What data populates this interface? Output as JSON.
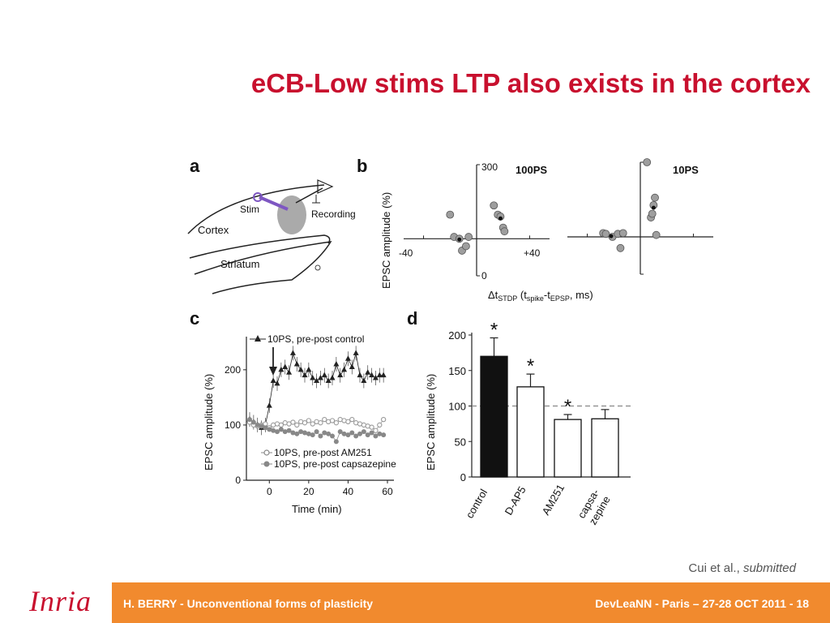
{
  "title": "eCB-Low stims LTP also exists in the cortex",
  "citation": {
    "authors": "Cui et al.,",
    "status": "submitted"
  },
  "footer": {
    "left": "H. BERRY - Unconventional forms of plasticity",
    "right": "DevLeaNN - Paris – 27-28 OCT 2011 - 18",
    "logo": "Inria"
  },
  "figure": {
    "panel_a": {
      "letter": "a",
      "labels": {
        "stim": "Stim",
        "recording": "Recording",
        "cortex": "Cortex",
        "striatum": "Striatum"
      }
    },
    "panel_b": {
      "letter": "b",
      "ylabel": "EPSC amplitude (%)",
      "xlabel_main": "Δt",
      "xlabel_sub1": "STDP",
      "xlabel_mid": " (t",
      "xlabel_sub2": "spike",
      "xlabel_mid2": "-t",
      "xlabel_sub3": "EPSP",
      "xlabel_end": ", ms)",
      "ytick_top": "300",
      "ytick_bottom": "0",
      "xtick_left": "-40",
      "xtick_right": "+40",
      "plot1_label": "100PS",
      "plot2_label": "10PS"
    },
    "panel_c": {
      "letter": "c",
      "ylabel": "EPSC amplitude (%)",
      "xlabel": "Time (min)",
      "yticks": [
        "0",
        "100",
        "200"
      ],
      "xticks": [
        "0",
        "20",
        "40",
        "60"
      ],
      "legend_top": "10PS, pre-post control",
      "legend_mid": "10PS, pre-post AM251",
      "legend_bottom": "10PS, pre-post capsazepine"
    },
    "panel_d": {
      "letter": "d",
      "ylabel": "EPSC amplitude (%)",
      "yticks": [
        "0",
        "50",
        "100",
        "150",
        "200"
      ],
      "star": "*",
      "cat1": "control",
      "cat2": "D-AP5",
      "cat3": "AM251",
      "cat4a": "capsa-",
      "cat4b": "zepine"
    }
  },
  "chart_data": [
    {
      "type": "scatter",
      "title": "100PS",
      "xlabel": "ΔtSTDP (tspike-tEPSP, ms)",
      "ylabel": "EPSC amplitude (%)",
      "xlim": [
        -55,
        55
      ],
      "ylim": [
        0,
        300
      ],
      "x": [
        -20,
        -17,
        -13,
        -11,
        -8,
        -6,
        13,
        16,
        18,
        20,
        21
      ],
      "y": [
        165,
        105,
        100,
        68,
        80,
        105,
        190,
        165,
        160,
        130,
        120
      ],
      "mean_points": [
        {
          "x": -13,
          "y": 98
        },
        {
          "x": 18,
          "y": 155
        }
      ]
    },
    {
      "type": "scatter",
      "title": "10PS",
      "xlim": [
        -55,
        55
      ],
      "ylim": [
        0,
        300
      ],
      "x": [
        -28,
        -26,
        -21,
        -17,
        -15,
        -13,
        5,
        8,
        9,
        10,
        11,
        12
      ],
      "y": [
        110,
        108,
        100,
        108,
        70,
        110,
        300,
        152,
        162,
        185,
        205,
        105
      ],
      "mean_points": [
        {
          "x": -22,
          "y": 102
        },
        {
          "x": 10,
          "y": 178
        }
      ]
    },
    {
      "type": "line",
      "xlabel": "Time (min)",
      "ylabel": "EPSC amplitude (%)",
      "xlim": [
        -10,
        60
      ],
      "ylim": [
        0,
        260
      ],
      "series": [
        {
          "name": "10PS, pre-post control",
          "x": [
            -10,
            -8,
            -6,
            -4,
            -2,
            0,
            2,
            4,
            6,
            8,
            10,
            12,
            14,
            16,
            18,
            20,
            22,
            24,
            26,
            28,
            30,
            32,
            34,
            36,
            38,
            40,
            42,
            44,
            46,
            48,
            50,
            52,
            54,
            56,
            58
          ],
          "y": [
            110,
            105,
            100,
            95,
            100,
            135,
            180,
            175,
            200,
            205,
            195,
            230,
            210,
            200,
            190,
            200,
            185,
            180,
            185,
            190,
            180,
            185,
            210,
            190,
            200,
            220,
            205,
            230,
            190,
            180,
            195,
            190,
            185,
            190,
            190
          ]
        },
        {
          "name": "10PS, pre-post AM251",
          "x": [
            -10,
            -8,
            -6,
            -4,
            -2,
            0,
            2,
            4,
            6,
            8,
            10,
            12,
            14,
            16,
            18,
            20,
            22,
            24,
            26,
            28,
            30,
            32,
            34,
            36,
            38,
            40,
            42,
            44,
            46,
            48,
            50,
            52,
            54,
            56,
            58
          ],
          "y": [
            105,
            100,
            98,
            100,
            102,
            95,
            100,
            102,
            100,
            104,
            102,
            105,
            100,
            106,
            104,
            108,
            102,
            106,
            104,
            110,
            106,
            108,
            104,
            110,
            108,
            106,
            110,
            104,
            102,
            100,
            98,
            96,
            90,
            100,
            110
          ]
        },
        {
          "name": "10PS, pre-post capsazepine",
          "x": [
            -10,
            -8,
            -6,
            -4,
            -2,
            0,
            2,
            4,
            6,
            8,
            10,
            12,
            14,
            16,
            18,
            20,
            22,
            24,
            26,
            28,
            30,
            32,
            34,
            36,
            38,
            40,
            42,
            44,
            46,
            48,
            50,
            52,
            54,
            56,
            58
          ],
          "y": [
            110,
            105,
            100,
            98,
            95,
            92,
            90,
            88,
            92,
            88,
            90,
            86,
            84,
            88,
            86,
            84,
            82,
            88,
            80,
            86,
            84,
            80,
            70,
            88,
            84,
            82,
            86,
            80,
            84,
            88,
            82,
            86,
            80,
            84,
            82
          ]
        }
      ]
    },
    {
      "type": "bar",
      "ylabel": "EPSC amplitude (%)",
      "ylim": [
        0,
        200
      ],
      "categories": [
        "control",
        "D-AP5",
        "AM251",
        "capsa-zepine"
      ],
      "values": [
        170,
        127,
        81,
        82
      ],
      "errors": [
        26,
        18,
        7,
        13
      ],
      "significant": [
        true,
        true,
        true,
        false
      ],
      "reference_line": 100
    }
  ]
}
